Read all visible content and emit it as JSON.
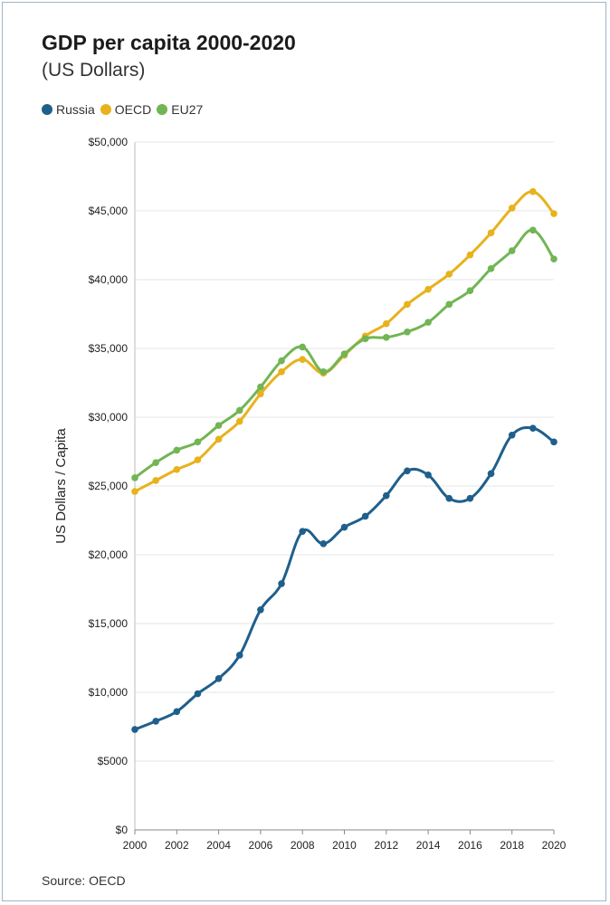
{
  "title": "GDP per capita 2000-2020",
  "subtitle": "(US Dollars)",
  "source": "Source: OECD",
  "legend": [
    {
      "name": "Russia",
      "color": "#1f5f8b"
    },
    {
      "name": "OECD",
      "color": "#e8b21d"
    },
    {
      "name": "EU27",
      "color": "#72b554"
    }
  ],
  "chart_data": {
    "type": "line",
    "ylabel": "US Dollars / Capita",
    "xlabel": "",
    "ylim": [
      0,
      50000
    ],
    "xlim": [
      2000,
      2020
    ],
    "y_ticks": [
      0,
      5000,
      10000,
      15000,
      20000,
      25000,
      30000,
      35000,
      40000,
      45000,
      50000
    ],
    "y_tick_labels": [
      "$0",
      "$5000",
      "$10,000",
      "$15,000",
      "$20,000",
      "$25,000",
      "$30,000",
      "$35,000",
      "$40,000",
      "$45,000",
      "$50,000"
    ],
    "x_ticks": [
      2000,
      2002,
      2004,
      2006,
      2008,
      2010,
      2012,
      2014,
      2016,
      2018,
      2020
    ],
    "x_tick_labels": [
      "2000",
      "2002",
      "2004",
      "2006",
      "2008",
      "2010",
      "2012",
      "2014",
      "2016",
      "2018",
      "2020"
    ],
    "grid": "horizontal",
    "legend_position": "top-left",
    "x": [
      2000,
      2001,
      2002,
      2003,
      2004,
      2005,
      2006,
      2007,
      2008,
      2009,
      2010,
      2011,
      2012,
      2013,
      2014,
      2015,
      2016,
      2017,
      2018,
      2019,
      2020
    ],
    "series": [
      {
        "name": "Russia",
        "color": "#1f5f8b",
        "values": [
          7300,
          7900,
          8600,
          9900,
          11000,
          12700,
          16000,
          17900,
          21700,
          20800,
          22000,
          22800,
          24300,
          26100,
          25800,
          24100,
          24100,
          25900,
          28700,
          29200,
          28200
        ]
      },
      {
        "name": "OECD",
        "color": "#e8b21d",
        "values": [
          24600,
          25400,
          26200,
          26900,
          28400,
          29700,
          31700,
          33300,
          34200,
          33200,
          34500,
          35900,
          36800,
          38200,
          39300,
          40400,
          41800,
          43400,
          45200,
          46400,
          44800
        ]
      },
      {
        "name": "EU27",
        "color": "#72b554",
        "values": [
          25600,
          26700,
          27600,
          28200,
          29400,
          30500,
          32200,
          34100,
          35100,
          33300,
          34600,
          35700,
          35800,
          36200,
          36900,
          38200,
          39200,
          40800,
          42100,
          43600,
          41500
        ]
      }
    ]
  }
}
